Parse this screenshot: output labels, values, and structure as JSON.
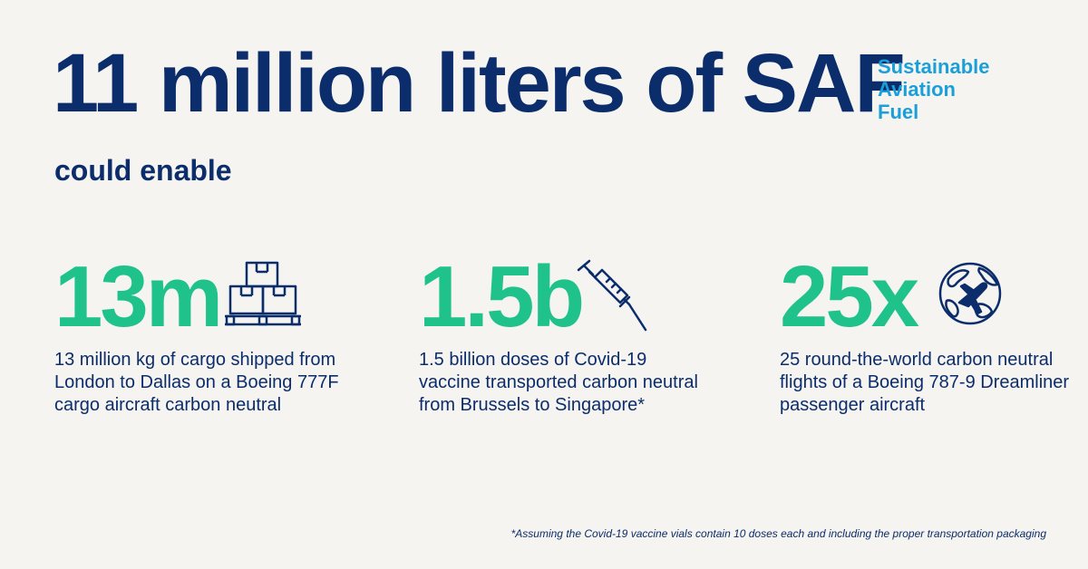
{
  "headline": "11 million liters of SAF",
  "saf_definition": [
    "Sustainable",
    "Aviation",
    "Fuel"
  ],
  "subhead": "could enable",
  "stats": [
    {
      "value": "13m",
      "icon": "cargo-boxes-pallet-icon",
      "description": "13 million kg of cargo shipped from London to Dallas on a Boeing 777F cargo aircraft carbon neutral"
    },
    {
      "value": "1.5b",
      "icon": "syringe-icon",
      "description": "1.5 billion doses of Covid-19 vaccine transported carbon neutral from Brussels to Singapore*"
    },
    {
      "value": "25x",
      "icon": "globe-airplane-icon",
      "description": "25 round-the-world carbon neutral flights of a Boeing 787-9 Dreamliner passenger aircraft"
    }
  ],
  "footnote": "*Assuming the Covid-19 vaccine vials contain 10 doses each and including the proper transportation packaging",
  "colors": {
    "background": "#f5f4f0",
    "navy": "#0b2d6b",
    "green": "#1fc28b",
    "blue": "#1a9fd9"
  }
}
